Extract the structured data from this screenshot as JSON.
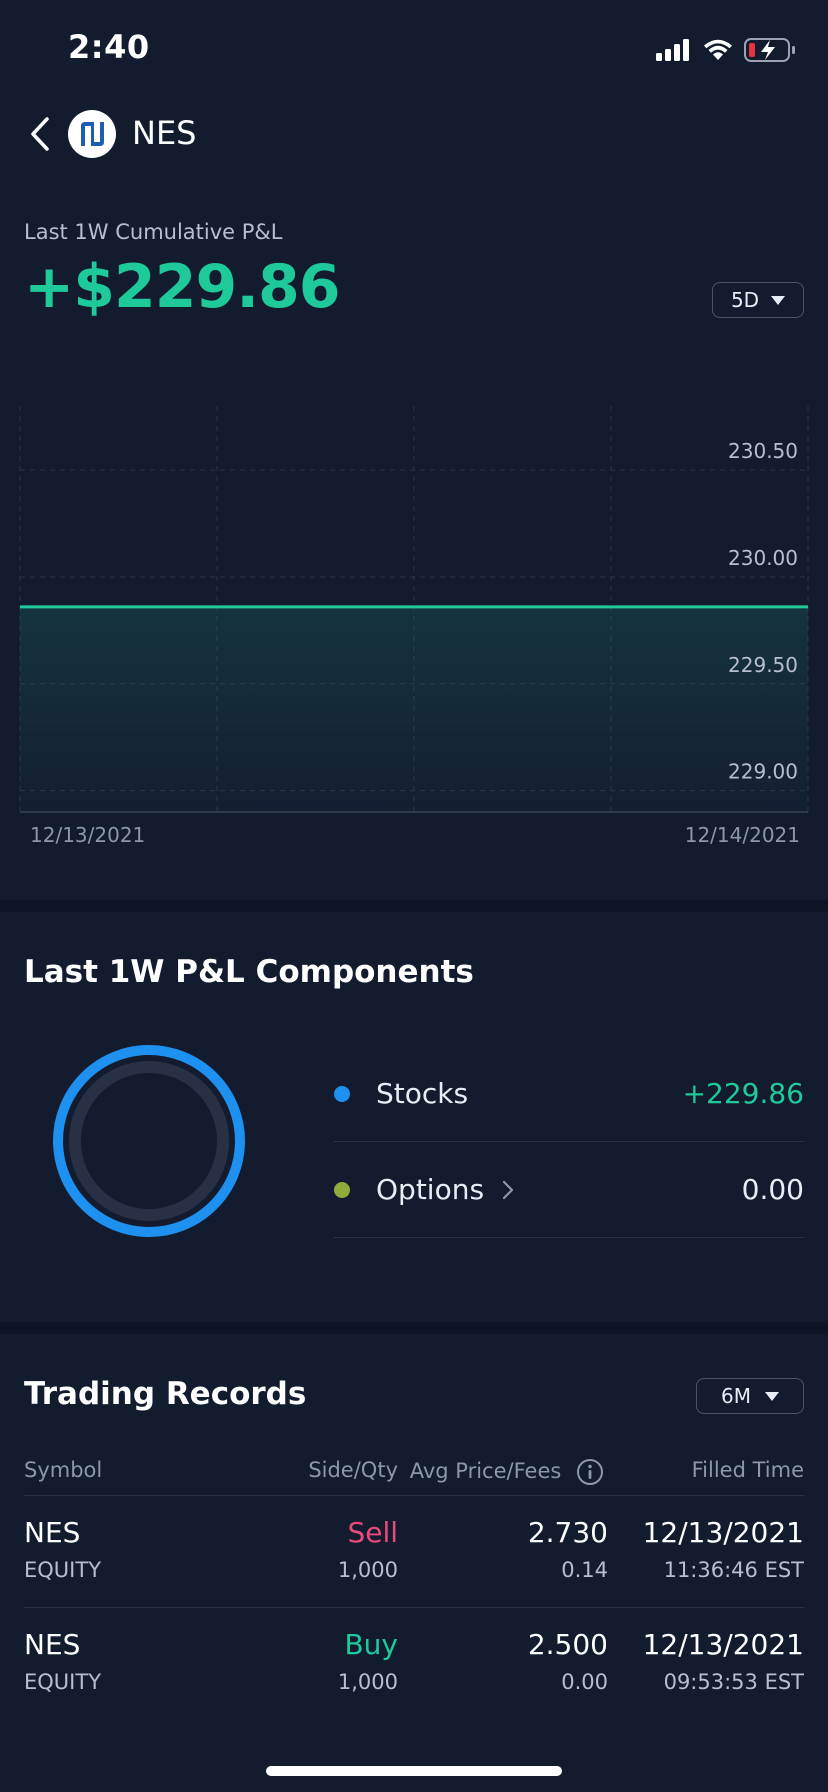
{
  "status_bar": {
    "time": "2:40"
  },
  "header": {
    "ticker": "NES"
  },
  "pnl": {
    "label": "Last 1W Cumulative P&L",
    "value": "+$229.86",
    "range": "5D"
  },
  "chart_data": {
    "type": "area",
    "x": [
      "12/13/2021",
      "12/14/2021"
    ],
    "x_tick_labels": [
      "12/13/2021",
      "12/14/2021"
    ],
    "y_tick_labels": [
      "230.50",
      "230.00",
      "229.50",
      "229.00"
    ],
    "series": [
      {
        "values": [
          229.86,
          229.86
        ]
      }
    ],
    "ylim": [
      228.9,
      230.8
    ],
    "grid": true,
    "color": "#1ec99a"
  },
  "components": {
    "title": "Last 1W P&L Components",
    "items": [
      {
        "label": "Stocks",
        "value": "+229.86",
        "dot_color": "#1e90f0",
        "value_color": "#1ec99a"
      },
      {
        "label": "Options",
        "value": "0.00",
        "dot_color": "#8fad3a",
        "value_color": "#e8ecf4"
      }
    ]
  },
  "records": {
    "title": "Trading Records",
    "range": "6M",
    "columns": [
      "Symbol",
      "Side/Qty",
      "Avg Price/Fees",
      "Filled Time"
    ],
    "rows": [
      {
        "symbol": "NES",
        "type": "EQUITY",
        "side": "Sell",
        "qty": "1,000",
        "price": "2.730",
        "fees": "0.14",
        "date": "12/13/2021",
        "time": "11:36:46 EST",
        "side_color": "#e84a7a"
      },
      {
        "symbol": "NES",
        "type": "EQUITY",
        "side": "Buy",
        "qty": "1,000",
        "price": "2.500",
        "fees": "0.00",
        "date": "12/13/2021",
        "time": "09:53:53 EST",
        "side_color": "#1ec99a"
      }
    ]
  },
  "colors": {
    "accent_green": "#1ec99a",
    "accent_blue": "#1e90f0",
    "sell_red": "#e84a7a",
    "background": "#131b2f"
  }
}
